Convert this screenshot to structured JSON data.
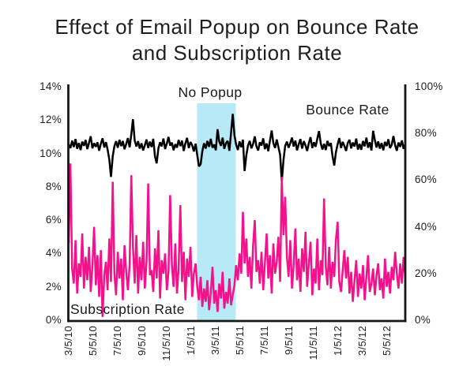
{
  "title": {
    "line1": "Effect of Email Popup on Bounce Rate",
    "line2": "and Subscription Rate"
  },
  "colors": {
    "background": "#FFFFFF",
    "axis": "#161616",
    "text": "#1C1C1C",
    "bounce_line": "#000000",
    "subscription_line": "#F4128C",
    "highlight_region": "#B8E9F6"
  },
  "chart_data": {
    "type": "line",
    "title": "Effect of Email Popup on Bounce Rate and Subscription Rate",
    "grid": false,
    "legend_position": "inline-annotations",
    "annotations": {
      "no_popup": "No Popup",
      "bounce_rate": "Bounce Rate",
      "subscription_rate": "Subscription Rate"
    },
    "x_axis": {
      "tick_labels": [
        "3/5/10",
        "5/5/10",
        "7/5/10",
        "9/5/10",
        "11/5/10",
        "1/5/11",
        "3/5/11",
        "5/5/11",
        "7/5/11",
        "9/5/11",
        "11/5/11",
        "1/5/12",
        "3/5/12",
        "5/5/12"
      ],
      "label_rotation_deg": -90
    },
    "left_axis": {
      "tick_labels": [
        "0%",
        "2%",
        "4%",
        "6%",
        "8%",
        "10%",
        "12%",
        "14%"
      ],
      "min": 0,
      "max": 14,
      "unit": "%",
      "series": "Subscription Rate"
    },
    "right_axis": {
      "tick_labels": [
        "0%",
        "20%",
        "40%",
        "60%",
        "80%",
        "100%"
      ],
      "min": 0,
      "max": 100,
      "unit": "%",
      "series": "Bounce Rate"
    },
    "highlight_region": {
      "label": "No Popup",
      "x_start_frac": 0.382,
      "x_end_frac": 0.497,
      "color": "#B8E9F6"
    },
    "series": [
      {
        "name": "Bounce Rate",
        "axis": "right",
        "color": "#000000",
        "values": [
          75.3,
          73.7,
          76.9,
          74.2,
          77.6,
          73.4,
          75.9,
          72.9,
          76.5,
          74.7,
          77.2,
          73.3,
          76.0,
          78.8,
          73.6,
          75.8,
          74.3,
          76.2,
          72.6,
          75.6,
          77.9,
          74.0,
          76.3,
          73.1,
          68.8,
          61.4,
          70.2,
          74.5,
          76.7,
          73.9,
          77.3,
          74.6,
          76.8,
          73.2,
          75.5,
          78.0,
          74.1,
          79.6,
          86.1,
          77.0,
          74.4,
          76.7,
          73.5,
          75.8,
          72.7,
          74.9,
          77.4,
          73.8,
          76.5,
          74.2,
          77.7,
          70.1,
          67.2,
          73.6,
          76.2,
          74.5,
          77.8,
          73.3,
          75.7,
          78.5,
          74.8,
          76.1,
          72.8,
          75.4,
          73.9,
          77.2,
          74.6,
          76.9,
          72.5,
          75.8,
          78.1,
          73.7,
          76.4,
          74.9,
          72.3,
          75.6,
          70.7,
          65.9,
          66.8,
          72.4,
          75.8,
          73.5,
          76.8,
          74.3,
          77.7,
          73.9,
          75.2,
          72.8,
          81.8,
          76.6,
          74.7,
          78.2,
          73.4,
          75.9,
          76.8,
          72.6,
          80.3,
          88.4,
          79.2,
          75.2,
          72.9,
          76.6,
          74.1,
          77.3,
          63.9,
          70.6,
          74.8,
          76.8,
          73.6,
          75.4,
          78.7,
          74.5,
          72.7,
          76.2,
          74.8,
          77.9,
          73.3,
          75.7,
          72.4,
          76.9,
          81.3,
          75.9,
          73.8,
          77.4,
          74.2,
          70.9,
          59.4,
          68.8,
          74.7,
          76.5,
          73.9,
          75.8,
          78.2,
          74.4,
          76.9,
          72.8,
          75.3,
          77.6,
          73.5,
          76.7,
          74.9,
          72.5,
          75.9,
          78.4,
          73.7,
          76.2,
          74.3,
          77.8,
          81.0,
          75.8,
          73.1,
          75.5,
          72.9,
          76.8,
          74.6,
          75.9,
          70.3,
          66.3,
          71.9,
          75.4,
          78.0,
          73.8,
          76.4,
          74.7,
          72.5,
          75.9,
          77.3,
          73.6,
          76.1,
          74.4,
          77.8,
          73.1,
          75.5,
          73.0,
          76.8,
          74.5,
          78.2,
          73.9,
          76.3,
          72.7,
          81.1,
          77.2,
          74.0,
          76.6,
          73.5,
          75.9,
          72.8,
          76.4,
          74.6,
          77.5,
          73.7,
          75.2,
          78.9,
          74.9,
          72.6,
          76.1,
          74.3,
          77.0,
          73.4,
          75.6
        ]
      },
      {
        "name": "Subscription Rate",
        "axis": "left",
        "color": "#F4128C",
        "values": [
          4.6,
          9.4,
          3.1,
          2.2,
          4.8,
          1.6,
          3.4,
          2.6,
          5.2,
          1.9,
          3.8,
          2.4,
          4.4,
          1.7,
          3.2,
          5.6,
          2.1,
          3.9,
          1.4,
          4.2,
          0.2,
          2.7,
          3.5,
          1.8,
          4.9,
          2.3,
          8.3,
          2.8,
          1.5,
          4.1,
          2.5,
          3.7,
          1.2,
          4.5,
          2.9,
          1.8,
          3.3,
          8.7,
          4.4,
          2.2,
          5.1,
          1.6,
          3.8,
          2.4,
          4.7,
          1.9,
          3.5,
          8.2,
          2.7,
          3.0,
          1.7,
          4.3,
          2.5,
          5.4,
          1.3,
          3.6,
          2.8,
          4.0,
          1.8,
          2.9,
          7.5,
          3.3,
          2.0,
          4.6,
          1.6,
          3.1,
          6.9,
          2.3,
          4.1,
          1.2,
          3.7,
          2.6,
          4.4,
          1.4,
          2.8,
          3.4,
          2.0,
          1.2,
          2.6,
          0.8,
          1.9,
          1.1,
          2.4,
          0.6,
          1.6,
          3.2,
          1.0,
          1.8,
          0.5,
          2.2,
          1.3,
          2.9,
          0.7,
          1.7,
          1.0,
          2.5,
          0.9,
          1.5,
          2.1,
          3.3,
          2.4,
          4.0,
          2.8,
          6.5,
          3.4,
          4.9,
          2.6,
          3.8,
          1.9,
          4.4,
          6.0,
          2.9,
          3.6,
          2.2,
          4.1,
          1.8,
          3.4,
          5.2,
          2.5,
          3.9,
          1.6,
          4.6,
          2.8,
          3.5,
          5.0,
          2.3,
          8.6,
          5.1,
          7.4,
          3.8,
          2.6,
          4.8,
          1.9,
          3.3,
          5.5,
          2.4,
          3.7,
          1.7,
          4.3,
          2.9,
          5.3,
          2.0,
          3.4,
          4.7,
          1.5,
          3.1,
          2.2,
          4.9,
          1.8,
          3.6,
          2.7,
          7.3,
          3.2,
          2.1,
          4.4,
          1.9,
          3.5,
          2.6,
          4.8,
          5.9,
          2.3,
          1.7,
          3.0,
          4.2,
          2.5,
          3.8,
          1.6,
          2.9,
          1.1,
          2.4,
          3.6,
          1.4,
          2.8,
          1.9,
          3.3,
          1.2,
          2.6,
          3.9,
          1.7,
          2.2,
          3.1,
          1.5,
          2.7,
          3.4,
          1.8,
          2.5,
          1.3,
          3.7,
          2.0,
          2.9,
          1.6,
          3.2,
          2.4,
          4.1,
          2.8,
          1.9,
          3.4,
          2.2,
          3.8,
          2.6
        ]
      }
    ]
  }
}
